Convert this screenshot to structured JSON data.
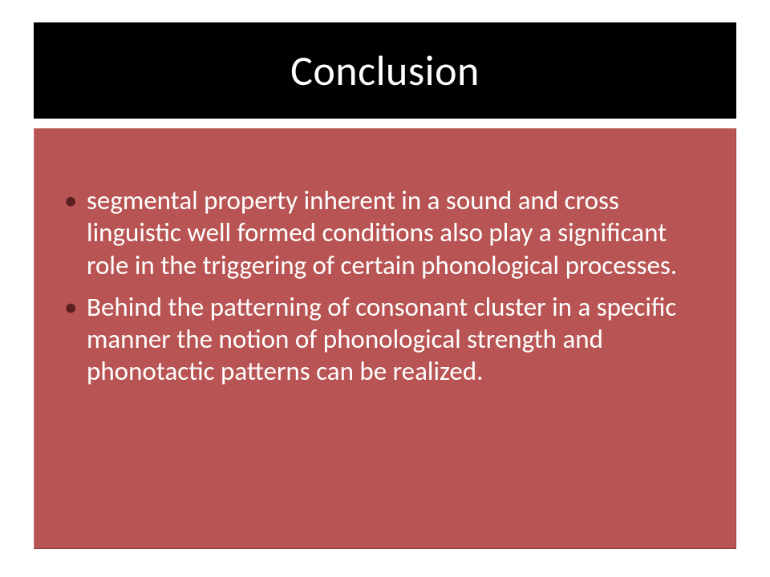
{
  "slide": {
    "title": "Conclusion",
    "bullets": [
      "segmental property inherent in a sound and cross linguistic well formed conditions also play a significant role in the triggering of certain phonological processes.",
      "Behind the patterning of consonant cluster in a specific manner the notion of phonological strength and phonotactic patterns can be realized."
    ],
    "style": {
      "title_bg": "#000000",
      "title_color": "#ffffff",
      "title_fontsize": 52,
      "body_bg": "#b85453",
      "body_text_color": "#ffffff",
      "bullet_marker_color": "#5a1f1f",
      "body_fontsize": 33,
      "slide_width": 960,
      "slide_height": 720
    }
  }
}
